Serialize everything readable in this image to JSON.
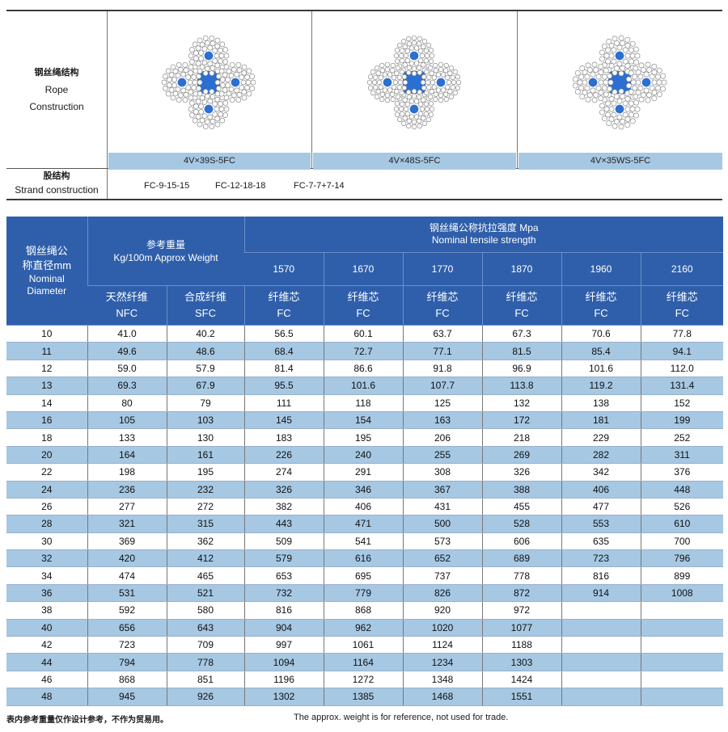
{
  "construction": {
    "rope_label_cn": "钢丝绳结构",
    "rope_label_en_1": "Rope",
    "rope_label_en_2": "Construction",
    "strand_label_cn": "股结构",
    "strand_label_en": "Strand construction",
    "types": [
      "4V×39S-5FC",
      "4V×48S-5FC",
      "4V×35WS-5FC"
    ],
    "strands": [
      "FC-9-15-15",
      "FC-12-18-18",
      "FC-7-7+7-14"
    ],
    "colors": {
      "wire": "#8a8a8a",
      "core": "#2a6fd1"
    }
  },
  "table": {
    "diameter_header": "钢丝绳公称直径mm Nominal Diameter",
    "diameter_header_cn_1": "钢丝绳公",
    "diameter_header_cn_2": "称直径mm",
    "diameter_header_en_1": "Nominal",
    "diameter_header_en_2": "Diameter",
    "weight_header_cn": "参考重量",
    "weight_header_en": "Kg/100m Approx Weight",
    "strength_header_cn": "钢丝绳公称抗拉强度 Mpa",
    "strength_header_en": "Nominal tensile strength",
    "grades": [
      "1570",
      "1670",
      "1770",
      "1870",
      "1960",
      "2160"
    ],
    "nfc_cn": "天然纤维",
    "nfc_en": "NFC",
    "sfc_cn": "合成纤维",
    "sfc_en": "SFC",
    "fc_cn": "纤维芯",
    "fc_en": "FC",
    "header_color": "#2f5faa",
    "stripe_color": "#a6c8e3",
    "rows": [
      [
        "10",
        "41.0",
        "40.2",
        "56.5",
        "60.1",
        "63.7",
        "67.3",
        "70.6",
        "77.8"
      ],
      [
        "11",
        "49.6",
        "48.6",
        "68.4",
        "72.7",
        "77.1",
        "81.5",
        "85.4",
        "94.1"
      ],
      [
        "12",
        "59.0",
        "57.9",
        "81.4",
        "86.6",
        "91.8",
        "96.9",
        "101.6",
        "112.0"
      ],
      [
        "13",
        "69.3",
        "67.9",
        "95.5",
        "101.6",
        "107.7",
        "113.8",
        "119.2",
        "131.4"
      ],
      [
        "14",
        "80",
        "79",
        "111",
        "118",
        "125",
        "132",
        "138",
        "152"
      ],
      [
        "16",
        "105",
        "103",
        "145",
        "154",
        "163",
        "172",
        "181",
        "199"
      ],
      [
        "18",
        "133",
        "130",
        "183",
        "195",
        "206",
        "218",
        "229",
        "252"
      ],
      [
        "20",
        "164",
        "161",
        "226",
        "240",
        "255",
        "269",
        "282",
        "311"
      ],
      [
        "22",
        "198",
        "195",
        "274",
        "291",
        "308",
        "326",
        "342",
        "376"
      ],
      [
        "24",
        "236",
        "232",
        "326",
        "346",
        "367",
        "388",
        "406",
        "448"
      ],
      [
        "26",
        "277",
        "272",
        "382",
        "406",
        "431",
        "455",
        "477",
        "526"
      ],
      [
        "28",
        "321",
        "315",
        "443",
        "471",
        "500",
        "528",
        "553",
        "610"
      ],
      [
        "30",
        "369",
        "362",
        "509",
        "541",
        "573",
        "606",
        "635",
        "700"
      ],
      [
        "32",
        "420",
        "412",
        "579",
        "616",
        "652",
        "689",
        "723",
        "796"
      ],
      [
        "34",
        "474",
        "465",
        "653",
        "695",
        "737",
        "778",
        "816",
        "899"
      ],
      [
        "36",
        "531",
        "521",
        "732",
        "779",
        "826",
        "872",
        "914",
        "1008"
      ],
      [
        "38",
        "592",
        "580",
        "816",
        "868",
        "920",
        "972",
        "",
        ""
      ],
      [
        "40",
        "656",
        "643",
        "904",
        "962",
        "1020",
        "1077",
        "",
        ""
      ],
      [
        "42",
        "723",
        "709",
        "997",
        "1061",
        "1124",
        "1188",
        "",
        ""
      ],
      [
        "44",
        "794",
        "778",
        "1094",
        "1164",
        "1234",
        "1303",
        "",
        ""
      ],
      [
        "46",
        "868",
        "851",
        "1196",
        "1272",
        "1348",
        "1424",
        "",
        ""
      ],
      [
        "48",
        "945",
        "926",
        "1302",
        "1385",
        "1468",
        "1551",
        "",
        ""
      ]
    ]
  },
  "footer": {
    "note_cn": "表内参考重量仅作设计参考，不作为贸易用。",
    "note_en": "The approx. weight is for reference, not used for trade."
  }
}
